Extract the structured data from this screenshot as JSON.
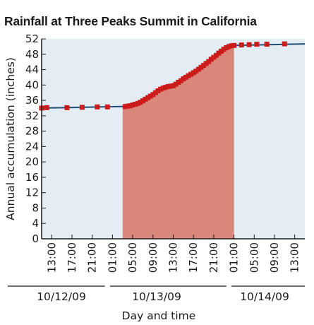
{
  "chart_data": {
    "type": "area",
    "title": "Rainfall at Three Peaks Summit in California",
    "xlabel": "Day and time",
    "ylabel": "Annual accumulation (inches)",
    "ylim": [
      0,
      52
    ],
    "y_ticks": [
      0,
      4,
      8,
      12,
      16,
      20,
      24,
      28,
      32,
      36,
      40,
      44,
      48,
      52
    ],
    "x_range": [
      "10/12/09 11:00",
      "10/14/09 15:00"
    ],
    "x_ticks": [
      "13:00",
      "17:00",
      "21:00",
      "01:00",
      "05:00",
      "09:00",
      "13:00",
      "17:00",
      "21:00",
      "01:00",
      "05:00",
      "09:00",
      "13:00"
    ],
    "date_groups": [
      "10/12/09",
      "10/13/09",
      "10/14/09"
    ],
    "grid": false,
    "series": [
      {
        "x": [
          "10/12/09 11:00",
          "10/12/09 23:00",
          "10/13/09 03:00",
          "10/13/09 06:00",
          "10/13/09 09:00",
          "10/13/09 11:00",
          "10/13/09 13:00",
          "10/13/09 15:00",
          "10/13/09 17:00",
          "10/13/09 19:00",
          "10/13/09 21:00",
          "10/13/09 23:00",
          "10/14/09 01:00",
          "10/14/09 15:00"
        ],
        "values": [
          34,
          34.3,
          34.4,
          35.2,
          37.5,
          39.2,
          39.8,
          41.6,
          43.2,
          45.1,
          47.2,
          49.3,
          50.3,
          50.7
        ]
      }
    ],
    "highlight": {
      "x_start": "10/13/09 03:00",
      "x_end": "10/14/09 01:00"
    },
    "markers": {
      "x": [
        "10/12/09 11:00",
        "10/12/09 12:00",
        "10/12/09 16:00",
        "10/12/09 19:00",
        "10/12/09 22:00",
        "10/13/09 00:00",
        "10/13/09 03:30",
        "10/13/09 04:00",
        "10/13/09 04:30",
        "10/13/09 05:00",
        "10/13/09 05:30",
        "10/13/09 06:00",
        "10/13/09 06:30",
        "10/13/09 07:00",
        "10/13/09 07:30",
        "10/13/09 08:00",
        "10/13/09 08:30",
        "10/13/09 09:00",
        "10/13/09 09:30",
        "10/13/09 10:00",
        "10/13/09 10:30",
        "10/13/09 11:00",
        "10/13/09 11:30",
        "10/13/09 12:00",
        "10/13/09 12:30",
        "10/13/09 13:00",
        "10/13/09 13:30",
        "10/13/09 14:00",
        "10/13/09 14:30",
        "10/13/09 15:00",
        "10/13/09 15:30",
        "10/13/09 16:00",
        "10/13/09 16:30",
        "10/13/09 17:00",
        "10/13/09 17:30",
        "10/13/09 18:00",
        "10/13/09 18:30",
        "10/13/09 19:00",
        "10/13/09 19:30",
        "10/13/09 20:00",
        "10/13/09 20:30",
        "10/13/09 21:00",
        "10/13/09 21:30",
        "10/13/09 22:00",
        "10/13/09 22:30",
        "10/13/09 23:00",
        "10/13/09 23:30",
        "10/14/09 00:00",
        "10/14/09 00:30",
        "10/14/09 01:00",
        "10/14/09 02:30",
        "10/14/09 04:00",
        "10/14/09 05:30",
        "10/14/09 07:30",
        "10/14/09 11:00"
      ],
      "values": [
        34.0,
        34.1,
        34.1,
        34.2,
        34.3,
        34.3,
        34.4,
        34.5,
        34.6,
        34.8,
        35.0,
        35.2,
        35.5,
        35.9,
        36.3,
        36.7,
        37.1,
        37.5,
        38.0,
        38.5,
        38.9,
        39.2,
        39.4,
        39.6,
        39.7,
        39.8,
        40.2,
        40.7,
        41.1,
        41.6,
        42.0,
        42.4,
        42.8,
        43.2,
        43.6,
        44.1,
        44.6,
        45.1,
        45.6,
        46.1,
        46.7,
        47.2,
        47.7,
        48.3,
        48.8,
        49.3,
        49.7,
        50.0,
        50.2,
        50.3,
        50.4,
        50.5,
        50.6,
        50.6,
        50.7
      ]
    },
    "colors": {
      "plot_background": "#e3edf3",
      "highlight_fill": "#d9877a",
      "line": "#1f4e79",
      "marker": "#cc1b1b",
      "axis": "#1a1a1a"
    }
  }
}
